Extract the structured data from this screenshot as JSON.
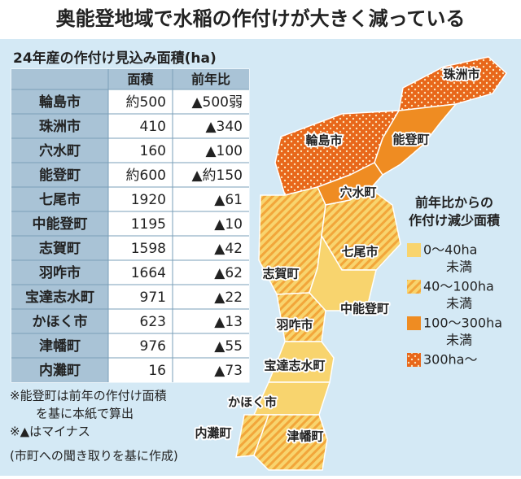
{
  "title": "奥能登地域で水稲の作付けが大きく減っている",
  "table": {
    "title": "24年産の作付け見込み面積(ha)",
    "header": [
      "面積",
      "前年比"
    ],
    "rows": [
      [
        "輪島市",
        "約500",
        "▲500弱"
      ],
      [
        "珠洲市",
        "410",
        "▲340"
      ],
      [
        "穴水町",
        "160",
        "▲100"
      ],
      [
        "能登町",
        "約600",
        "▲約150"
      ],
      [
        "七尾市",
        "1920",
        "▲61"
      ],
      [
        "中能登町",
        "1195",
        "▲10"
      ],
      [
        "志賀町",
        "1598",
        "▲42"
      ],
      [
        "羽咋市",
        "1664",
        "▲62"
      ],
      [
        "宝達志水町",
        "971",
        "▲22"
      ],
      [
        "かほく市",
        "623",
        "▲13"
      ],
      [
        "津幡町",
        "976",
        "▲55"
      ],
      [
        "内灘町",
        "16",
        "▲73"
      ]
    ]
  },
  "notes": [
    [
      "※能登町は前年の作付け面積",
      "を基に本紙で算出"
    ],
    [
      "※▲はマイナス"
    ],
    [
      "(市町への聞き取りを基に作成)"
    ]
  ],
  "legend": {
    "title": [
      "前年比からの",
      "作付け減少面積"
    ],
    "items": [
      {
        "label": [
          "0〜40ha",
          "未満"
        ],
        "color": "#f8d46e",
        "fill": "solid"
      },
      {
        "label": [
          "40〜100ha",
          "未満"
        ],
        "color": "#f2a63a",
        "fill": "hatch"
      },
      {
        "label": [
          "100〜300ha",
          "未満"
        ],
        "color": "#ef8c22",
        "fill": "solid"
      },
      {
        "label": [
          "300ha〜"
        ],
        "color": "#e8671a",
        "fill": "dots"
      }
    ]
  },
  "map": {
    "regions": [
      {
        "label": "珠洲市",
        "legend": 3
      },
      {
        "label": "輪島市",
        "legend": 3
      },
      {
        "label": "能登町",
        "legend": 2
      },
      {
        "label": "穴水町",
        "legend": 2
      },
      {
        "label": "志賀町",
        "legend": 1
      },
      {
        "label": "七尾市",
        "legend": 1
      },
      {
        "label": "中能登町",
        "legend": 0
      },
      {
        "label": "羽咋市",
        "legend": 1
      },
      {
        "label": "宝達志水町",
        "legend": 0
      },
      {
        "label": "かほく市",
        "legend": 0
      },
      {
        "label": "内灘町",
        "legend": 1
      },
      {
        "label": "津幡町",
        "legend": 1
      }
    ]
  }
}
